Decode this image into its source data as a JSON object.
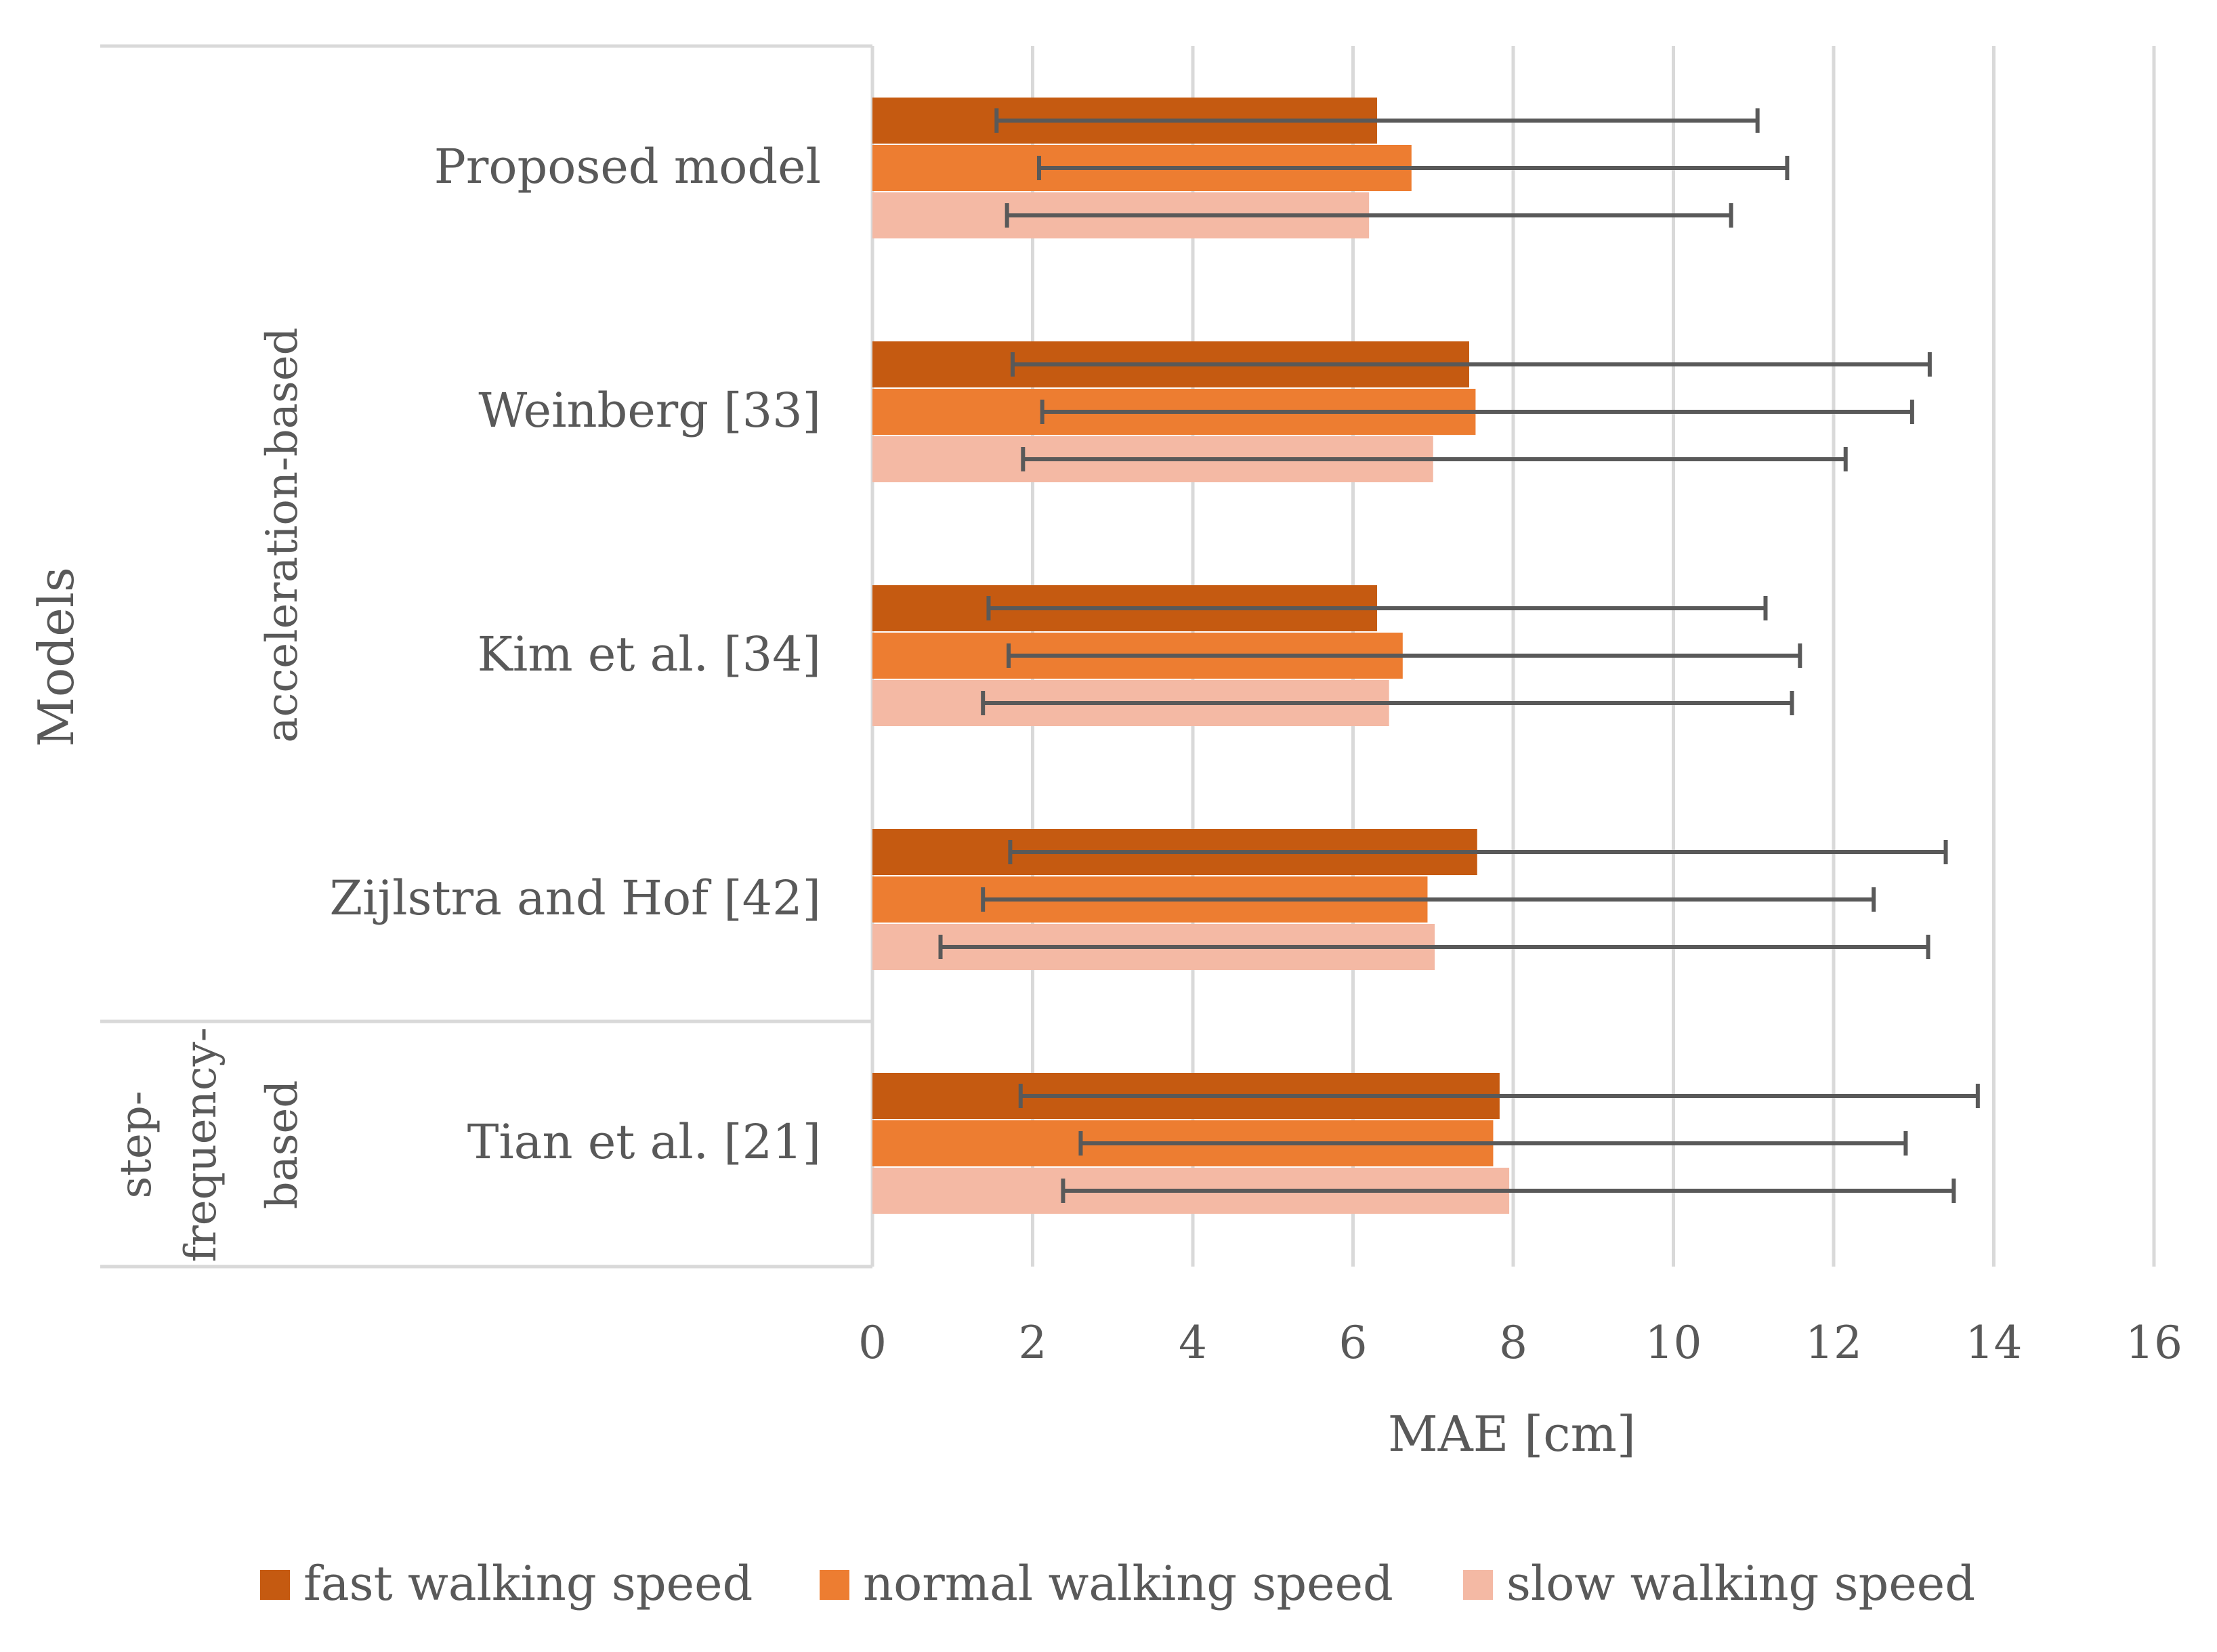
{
  "chart_data": {
    "type": "bar",
    "orientation": "horizontal",
    "xlabel": "MAE [cm]",
    "ylabel": "Models",
    "xlim": [
      0,
      16
    ],
    "xticks": [
      0,
      2,
      4,
      6,
      8,
      10,
      12,
      14,
      16
    ],
    "grid": true,
    "legend_position": "bottom",
    "groups": [
      {
        "label": "acceleration-based",
        "categories": [
          "Proposed model",
          "Weinberg [33]",
          "Kim et al. [34]",
          "Zijlstra and Hof [42]"
        ]
      },
      {
        "label": "step-frequency-based",
        "label_lines": [
          "step-",
          "frequency-",
          "based"
        ],
        "categories": [
          "Tian et al. [21]"
        ]
      }
    ],
    "categories": [
      "Proposed model",
      "Weinberg [33]",
      "Kim et al. [34]",
      "Zijlstra and Hof [42]",
      "Tian et al. [21]"
    ],
    "series": [
      {
        "name": "fast walking speed",
        "color": "#c55a11",
        "values": [
          6.3,
          7.45,
          6.3,
          7.55,
          7.83
        ],
        "error_low": [
          1.55,
          1.75,
          1.45,
          1.72,
          1.85
        ],
        "error_high": [
          11.05,
          13.2,
          11.15,
          13.4,
          13.8
        ]
      },
      {
        "name": "normal walking speed",
        "color": "#ed7d31",
        "values": [
          6.73,
          7.53,
          6.62,
          6.93,
          7.75
        ],
        "error_low": [
          2.08,
          2.12,
          1.7,
          1.38,
          2.6
        ],
        "error_high": [
          11.42,
          12.98,
          11.58,
          12.5,
          12.9
        ]
      },
      {
        "name": "slow walking speed",
        "color": "#f4b9a4",
        "values": [
          6.2,
          7.0,
          6.45,
          7.02,
          7.95
        ],
        "error_low": [
          1.68,
          1.88,
          1.38,
          0.85,
          2.38
        ],
        "error_high": [
          10.72,
          12.15,
          11.48,
          13.18,
          13.5
        ]
      }
    ]
  }
}
